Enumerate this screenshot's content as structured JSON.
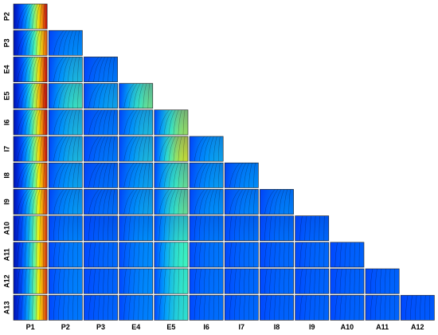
{
  "chart_data": {
    "type": "heatmap",
    "layout": "lower-triangular contour-plot matrix",
    "row_labels": [
      "P2",
      "P3",
      "E4",
      "E5",
      "I6",
      "I7",
      "I8",
      "I9",
      "A10",
      "A11",
      "A12",
      "A13"
    ],
    "col_labels": [
      "P1",
      "P2",
      "P3",
      "E4",
      "E5",
      "I6",
      "I7",
      "I8",
      "I9",
      "A10",
      "A11",
      "A12"
    ],
    "colormap": [
      "#00008f",
      "#0040ff",
      "#00a0ff",
      "#40ffbf",
      "#ffff00",
      "#ff8000",
      "#c00000"
    ],
    "contour_line_color": "#000000",
    "grid": false,
    "legend": "none",
    "panel_variation": [
      [
        0.95
      ],
      [
        0.85,
        0.35
      ],
      [
        0.95,
        0.45,
        0.3
      ],
      [
        1.0,
        0.55,
        0.4,
        0.6
      ],
      [
        0.95,
        0.45,
        0.3,
        0.45,
        0.6
      ],
      [
        0.95,
        0.45,
        0.3,
        0.45,
        0.65,
        0.4
      ],
      [
        0.9,
        0.4,
        0.28,
        0.4,
        0.55,
        0.38,
        0.35
      ],
      [
        0.9,
        0.38,
        0.28,
        0.4,
        0.55,
        0.36,
        0.33,
        0.32
      ],
      [
        0.9,
        0.32,
        0.25,
        0.35,
        0.5,
        0.3,
        0.28,
        0.28,
        0.26
      ],
      [
        0.9,
        0.3,
        0.25,
        0.32,
        0.5,
        0.28,
        0.26,
        0.25,
        0.25,
        0.24
      ],
      [
        0.9,
        0.3,
        0.24,
        0.32,
        0.48,
        0.27,
        0.25,
        0.25,
        0.24,
        0.24,
        0.24
      ],
      [
        0.9,
        0.28,
        0.24,
        0.3,
        0.46,
        0.26,
        0.25,
        0.24,
        0.24,
        0.24,
        0.24,
        0.22
      ]
    ]
  }
}
